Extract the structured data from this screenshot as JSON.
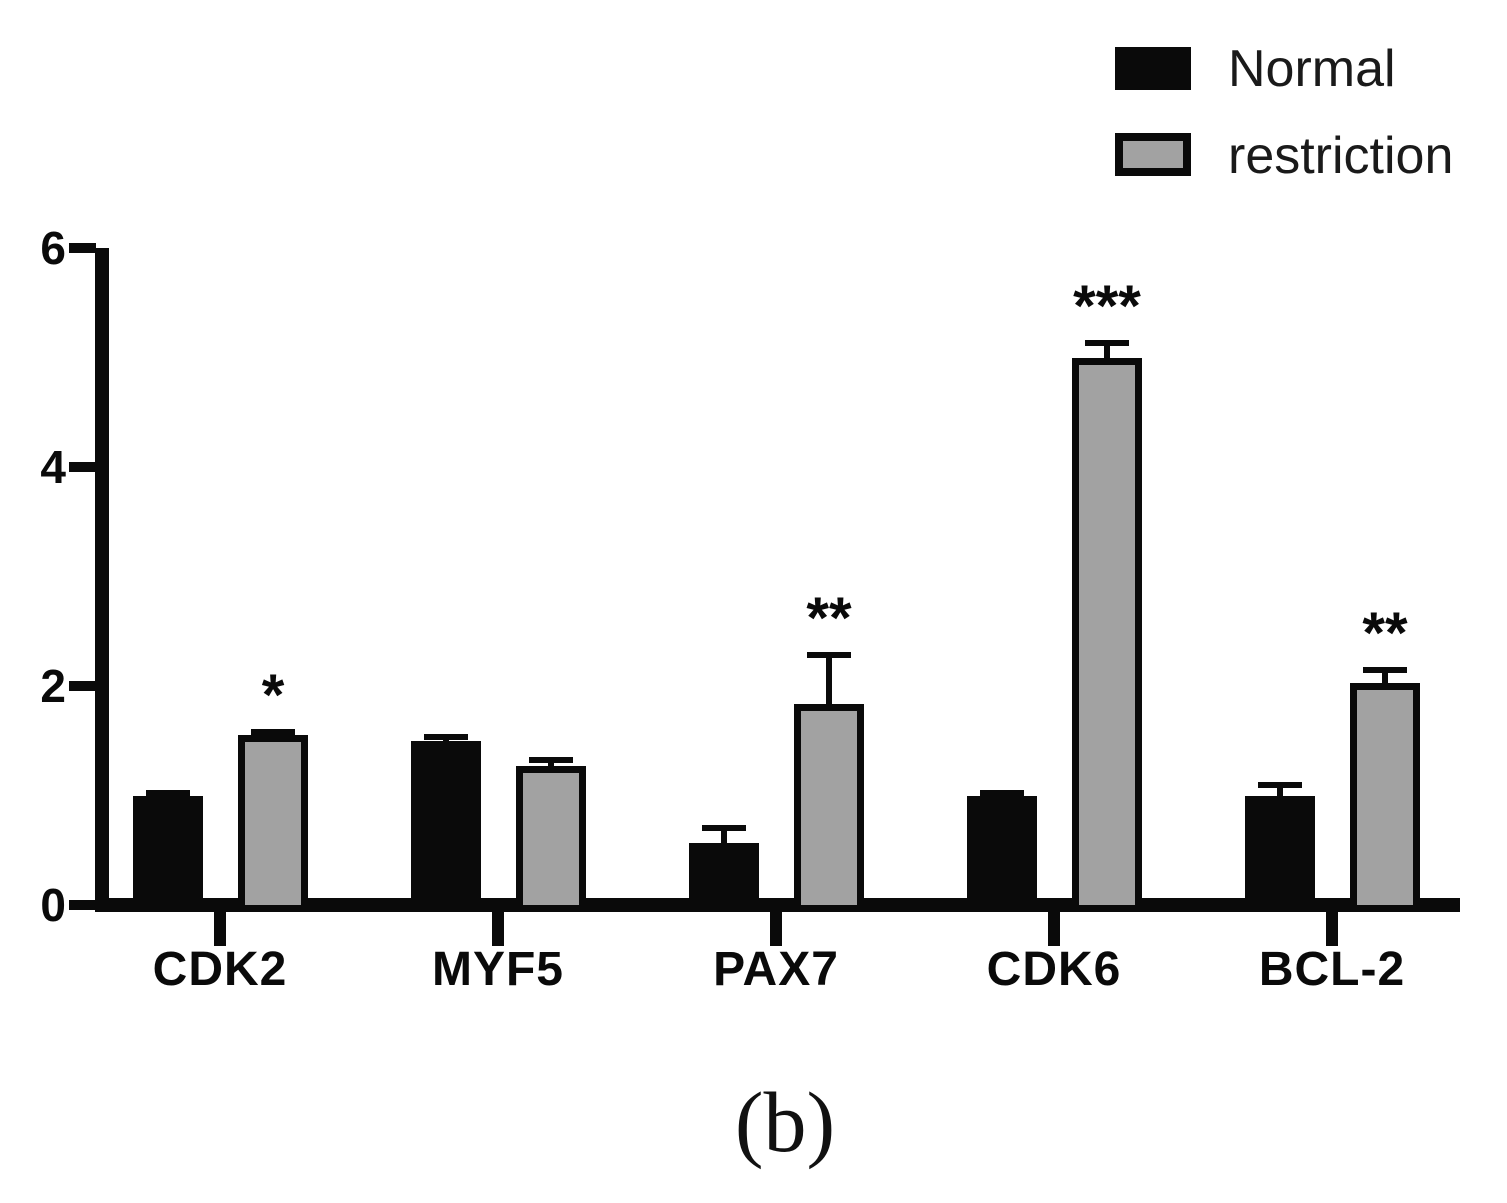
{
  "figure": {
    "caption": "(b)"
  },
  "legend": {
    "items": [
      {
        "label": "Normal",
        "color": "#0a0a0a",
        "style": "solid"
      },
      {
        "label": "restriction",
        "color": "#a2a2a2",
        "style": "outlined"
      }
    ]
  },
  "chart_data": {
    "type": "bar",
    "categories": [
      "CDK2",
      "MYF5",
      "PAX7",
      "CDK6",
      "BCL-2"
    ],
    "series": [
      {
        "name": "Normal",
        "color": "#0a0a0a",
        "values": [
          1.0,
          1.5,
          0.57,
          1.0,
          1.0
        ],
        "errors": [
          0.05,
          0.06,
          0.16,
          0.05,
          0.12
        ]
      },
      {
        "name": "restriction",
        "color": "#a2a2a2",
        "values": [
          1.55,
          1.27,
          1.84,
          5.0,
          2.03
        ],
        "errors": [
          0.06,
          0.08,
          0.47,
          0.16,
          0.14
        ]
      }
    ],
    "significance_on_restriction": [
      "*",
      "",
      "**",
      "***",
      "**"
    ],
    "title": "",
    "xlabel": "",
    "ylabel": "",
    "ylim": [
      0,
      6
    ],
    "yticks": [
      0,
      2,
      4,
      6
    ],
    "grid": false,
    "legend_position": "top-right"
  }
}
